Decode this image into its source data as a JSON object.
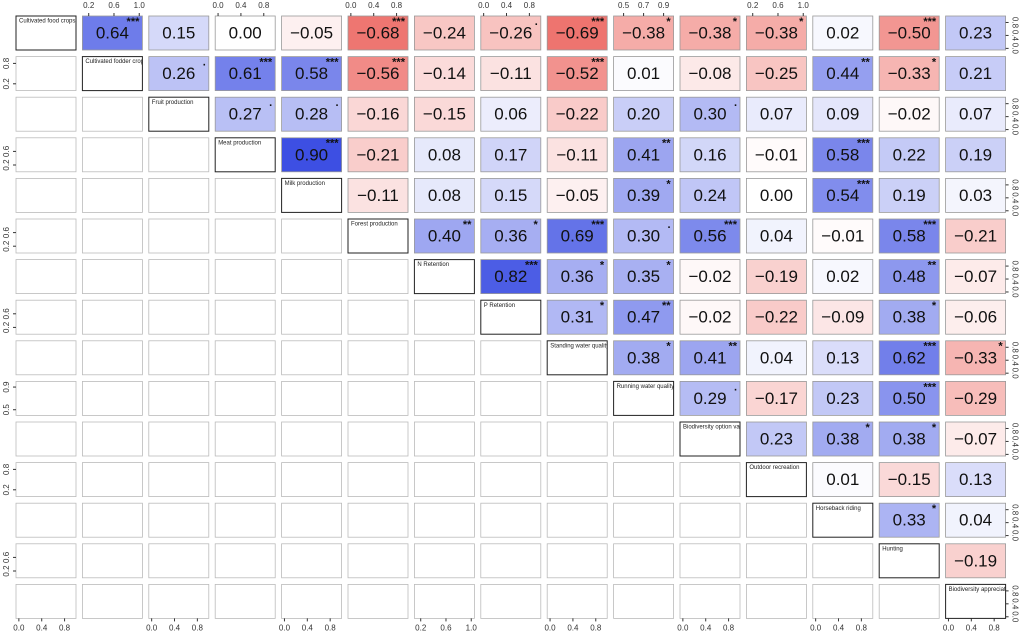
{
  "chart_data": {
    "type": "correlation-matrix",
    "variables": [
      "Cultivated food crops",
      "Cultivated fodder crops",
      "Fruit production",
      "Meat production",
      "Milk production",
      "Forest production",
      "N Retention",
      "P Retention",
      "Standing water quality",
      "Running water quality",
      "Biodiversity option value",
      "Outdoor recreation",
      "Horseback riding",
      "Hunting",
      "Biodiversity appreciation"
    ],
    "correlations": [
      [
        {
          "value": 0.64,
          "label": "0.64",
          "stars": "***"
        },
        {
          "value": 0.15,
          "label": "0.15"
        },
        {
          "value": 0,
          "label": "0.00"
        },
        {
          "value": -0.05,
          "label": "−0.05"
        },
        {
          "value": -0.68,
          "label": "−0.68",
          "stars": "***"
        },
        {
          "value": -0.24,
          "label": "−0.24"
        },
        {
          "value": -0.26,
          "label": "−0.26",
          "stars": "."
        },
        {
          "value": -0.69,
          "label": "−0.69",
          "stars": "***"
        },
        {
          "value": -0.38,
          "label": "−0.38",
          "stars": "*"
        },
        {
          "value": -0.38,
          "label": "−0.38",
          "stars": "*"
        },
        {
          "value": -0.38,
          "label": "−0.38",
          "stars": "*"
        },
        {
          "value": 0.02,
          "label": "0.02"
        },
        {
          "value": -0.5,
          "label": "−0.50",
          "stars": "***"
        },
        {
          "value": 0.23,
          "label": "0.23"
        }
      ],
      [
        {
          "value": 0.26,
          "label": "0.26",
          "stars": "."
        },
        {
          "value": 0.61,
          "label": "0.61",
          "stars": "***"
        },
        {
          "value": 0.58,
          "label": "0.58",
          "stars": "***"
        },
        {
          "value": -0.56,
          "label": "−0.56",
          "stars": "***"
        },
        {
          "value": -0.14,
          "label": "−0.14"
        },
        {
          "value": -0.11,
          "label": "−0.11"
        },
        {
          "value": -0.52,
          "label": "−0.52",
          "stars": "***"
        },
        {
          "value": 0.01,
          "label": "0.01"
        },
        {
          "value": -0.08,
          "label": "−0.08"
        },
        {
          "value": -0.25,
          "label": "−0.25"
        },
        {
          "value": 0.44,
          "label": "0.44",
          "stars": "**"
        },
        {
          "value": -0.33,
          "label": "−0.33",
          "stars": "*"
        },
        {
          "value": 0.21,
          "label": "0.21"
        }
      ],
      [
        {
          "value": 0.27,
          "label": "0.27",
          "stars": "."
        },
        {
          "value": 0.28,
          "label": "0.28",
          "stars": "."
        },
        {
          "value": -0.16,
          "label": "−0.16"
        },
        {
          "value": -0.15,
          "label": "−0.15"
        },
        {
          "value": 0.06,
          "label": "0.06"
        },
        {
          "value": -0.22,
          "label": "−0.22"
        },
        {
          "value": 0.2,
          "label": "0.20"
        },
        {
          "value": 0.3,
          "label": "0.30",
          "stars": "."
        },
        {
          "value": 0.07,
          "label": "0.07"
        },
        {
          "value": 0.09,
          "label": "0.09"
        },
        {
          "value": -0.02,
          "label": "−0.02"
        },
        {
          "value": 0.07,
          "label": "0.07"
        }
      ],
      [
        {
          "value": 0.9,
          "label": "0.90",
          "stars": "***"
        },
        {
          "value": -0.21,
          "label": "−0.21"
        },
        {
          "value": 0.08,
          "label": "0.08"
        },
        {
          "value": 0.17,
          "label": "0.17"
        },
        {
          "value": -0.11,
          "label": "−0.11"
        },
        {
          "value": 0.41,
          "label": "0.41",
          "stars": "**"
        },
        {
          "value": 0.16,
          "label": "0.16"
        },
        {
          "value": -0.01,
          "label": "−0.01"
        },
        {
          "value": 0.58,
          "label": "0.58",
          "stars": "***"
        },
        {
          "value": 0.22,
          "label": "0.22"
        },
        {
          "value": 0.19,
          "label": "0.19"
        }
      ],
      [
        {
          "value": -0.11,
          "label": "−0.11"
        },
        {
          "value": 0.08,
          "label": "0.08"
        },
        {
          "value": 0.15,
          "label": "0.15"
        },
        {
          "value": -0.05,
          "label": "−0.05"
        },
        {
          "value": 0.39,
          "label": "0.39",
          "stars": "*"
        },
        {
          "value": 0.24,
          "label": "0.24"
        },
        {
          "value": 0,
          "label": "0.00"
        },
        {
          "value": 0.54,
          "label": "0.54",
          "stars": "***"
        },
        {
          "value": 0.19,
          "label": "0.19"
        },
        {
          "value": 0.03,
          "label": "0.03"
        }
      ],
      [
        {
          "value": 0.4,
          "label": "0.40",
          "stars": "**"
        },
        {
          "value": 0.36,
          "label": "0.36",
          "stars": "*"
        },
        {
          "value": 0.69,
          "label": "0.69",
          "stars": "***"
        },
        {
          "value": 0.3,
          "label": "0.30",
          "stars": "."
        },
        {
          "value": 0.56,
          "label": "0.56",
          "stars": "***"
        },
        {
          "value": 0.04,
          "label": "0.04"
        },
        {
          "value": -0.01,
          "label": "−0.01"
        },
        {
          "value": 0.58,
          "label": "0.58",
          "stars": "***"
        },
        {
          "value": -0.21,
          "label": "−0.21"
        }
      ],
      [
        {
          "value": 0.82,
          "label": "0.82",
          "stars": "***"
        },
        {
          "value": 0.36,
          "label": "0.36",
          "stars": "*"
        },
        {
          "value": 0.35,
          "label": "0.35",
          "stars": "*"
        },
        {
          "value": -0.02,
          "label": "−0.02"
        },
        {
          "value": -0.19,
          "label": "−0.19"
        },
        {
          "value": 0.02,
          "label": "0.02"
        },
        {
          "value": 0.48,
          "label": "0.48",
          "stars": "**"
        },
        {
          "value": -0.07,
          "label": "−0.07"
        }
      ],
      [
        {
          "value": 0.31,
          "label": "0.31",
          "stars": "*"
        },
        {
          "value": 0.47,
          "label": "0.47",
          "stars": "**"
        },
        {
          "value": -0.02,
          "label": "−0.02"
        },
        {
          "value": -0.22,
          "label": "−0.22"
        },
        {
          "value": -0.09,
          "label": "−0.09"
        },
        {
          "value": 0.38,
          "label": "0.38",
          "stars": "*"
        },
        {
          "value": -0.06,
          "label": "−0.06"
        }
      ],
      [
        {
          "value": 0.38,
          "label": "0.38",
          "stars": "*"
        },
        {
          "value": 0.41,
          "label": "0.41",
          "stars": "**"
        },
        {
          "value": 0.04,
          "label": "0.04"
        },
        {
          "value": 0.13,
          "label": "0.13"
        },
        {
          "value": 0.62,
          "label": "0.62",
          "stars": "***"
        },
        {
          "value": -0.33,
          "label": "−0.33",
          "stars": "*"
        }
      ],
      [
        {
          "value": 0.29,
          "label": "0.29",
          "stars": "."
        },
        {
          "value": -0.17,
          "label": "−0.17"
        },
        {
          "value": 0.23,
          "label": "0.23"
        },
        {
          "value": 0.5,
          "label": "0.50",
          "stars": "***"
        },
        {
          "value": -0.29,
          "label": "−0.29"
        }
      ],
      [
        {
          "value": 0.23,
          "label": "0.23"
        },
        {
          "value": 0.38,
          "label": "0.38",
          "stars": "*"
        },
        {
          "value": 0.38,
          "label": "0.38",
          "stars": "*"
        },
        {
          "value": -0.07,
          "label": "−0.07"
        }
      ],
      [
        {
          "value": 0.01,
          "label": "0.01"
        },
        {
          "value": -0.15,
          "label": "−0.15"
        },
        {
          "value": 0.13,
          "label": "0.13"
        }
      ],
      [
        {
          "value": 0.33,
          "label": "0.33",
          "stars": "*"
        },
        {
          "value": 0.04,
          "label": "0.04"
        }
      ],
      [
        {
          "value": -0.19,
          "label": "−0.19"
        }
      ]
    ],
    "positive_color": "#2b3fe0",
    "negative_color": "#e8413a",
    "axes": [
      {
        "side": "top",
        "panel": 1,
        "lim": [
          0.1,
          1.05
        ],
        "ticks": [
          0.2,
          0.6,
          {
            "value": 1,
            "label": "1.0"
          }
        ]
      },
      {
        "side": "top",
        "panel": 3,
        "lim": [
          -0.05,
          1
        ],
        "ticks": [
          {
            "value": 0,
            "label": "0.0"
          },
          0.4,
          0.8
        ]
      },
      {
        "side": "top",
        "panel": 5,
        "lim": [
          -0.05,
          1
        ],
        "ticks": [
          {
            "value": 0,
            "label": "0.0"
          },
          0.4,
          0.8
        ]
      },
      {
        "side": "top",
        "panel": 7,
        "lim": [
          -0.05,
          1
        ],
        "ticks": [
          {
            "value": 0,
            "label": "0.0"
          },
          0.4,
          0.8
        ]
      },
      {
        "side": "top",
        "panel": 9,
        "lim": [
          0.4,
          1
        ],
        "ticks": [
          0.5,
          0.7,
          0.9
        ]
      },
      {
        "side": "top",
        "panel": 11,
        "lim": [
          0.1,
          1.05
        ],
        "ticks": [
          0.2,
          0.6,
          {
            "value": 1,
            "label": "1.0"
          }
        ]
      },
      {
        "side": "bottom",
        "panel": 0,
        "lim": [
          -0.05,
          1
        ],
        "ticks": [
          {
            "value": 0,
            "label": "0.0"
          },
          0.4,
          0.8
        ]
      },
      {
        "side": "bottom",
        "panel": 2,
        "lim": [
          -0.05,
          1
        ],
        "ticks": [
          {
            "value": 0,
            "label": "0.0"
          },
          0.4,
          0.8
        ]
      },
      {
        "side": "bottom",
        "panel": 4,
        "lim": [
          -0.05,
          1
        ],
        "ticks": [
          {
            "value": 0,
            "label": "0.0"
          },
          0.4,
          0.8
        ]
      },
      {
        "side": "bottom",
        "panel": 6,
        "lim": [
          0.1,
          1.05
        ],
        "ticks": [
          0.2,
          0.6,
          {
            "value": 1,
            "label": "1.0"
          }
        ]
      },
      {
        "side": "bottom",
        "panel": 8,
        "lim": [
          -0.05,
          1
        ],
        "ticks": [
          {
            "value": 0,
            "label": "0.0"
          },
          0.4,
          0.8
        ]
      },
      {
        "side": "bottom",
        "panel": 10,
        "lim": [
          -0.05,
          1
        ],
        "ticks": [
          {
            "value": 0,
            "label": "0.0"
          },
          0.4,
          0.8
        ]
      },
      {
        "side": "bottom",
        "panel": 12,
        "lim": [
          -0.05,
          1
        ],
        "ticks": [
          {
            "value": 0,
            "label": "0.0"
          },
          0.4,
          0.8
        ]
      },
      {
        "side": "bottom",
        "panel": 14,
        "lim": [
          -0.05,
          1
        ],
        "ticks": [
          {
            "value": 0,
            "label": "0.0"
          },
          0.4,
          0.8
        ]
      },
      {
        "side": "left",
        "panel": 1,
        "lim": [
          0,
          1
        ],
        "ticks": [
          0.2,
          0.8
        ]
      },
      {
        "side": "left",
        "panel": 3,
        "lim": [
          0,
          1
        ],
        "ticks": [
          0.2,
          0.6
        ]
      },
      {
        "side": "left",
        "panel": 5,
        "lim": [
          0,
          1
        ],
        "ticks": [
          0.2,
          0.6
        ]
      },
      {
        "side": "left",
        "panel": 7,
        "lim": [
          0,
          1
        ],
        "ticks": [
          0.2,
          0.6
        ]
      },
      {
        "side": "left",
        "panel": 9,
        "lim": [
          0.4,
          1
        ],
        "ticks": [
          0.5,
          0.9
        ]
      },
      {
        "side": "left",
        "panel": 11,
        "lim": [
          0,
          1
        ],
        "ticks": [
          0.2,
          0.8
        ]
      },
      {
        "side": "left",
        "panel": 13,
        "lim": [
          0,
          1
        ],
        "ticks": [
          0.2,
          0.6
        ]
      },
      {
        "side": "right",
        "panel": 0,
        "lim": [
          -0.05,
          1
        ],
        "ticks": [
          {
            "value": 0,
            "label": "0.0"
          },
          0.4,
          0.8
        ]
      },
      {
        "side": "right",
        "panel": 2,
        "lim": [
          -0.05,
          1
        ],
        "ticks": [
          {
            "value": 0,
            "label": "0.0"
          },
          0.4,
          0.8
        ]
      },
      {
        "side": "right",
        "panel": 4,
        "lim": [
          -0.05,
          1
        ],
        "ticks": [
          {
            "value": 0,
            "label": "0.0"
          },
          0.4,
          0.8
        ]
      },
      {
        "side": "right",
        "panel": 6,
        "lim": [
          -0.05,
          1
        ],
        "ticks": [
          {
            "value": 0,
            "label": "0.0"
          },
          0.4,
          0.8
        ]
      },
      {
        "side": "right",
        "panel": 8,
        "lim": [
          -0.05,
          1
        ],
        "ticks": [
          {
            "value": 0,
            "label": "0.0"
          },
          0.4,
          0.8
        ]
      },
      {
        "side": "right",
        "panel": 10,
        "lim": [
          -0.05,
          1
        ],
        "ticks": [
          {
            "value": 0,
            "label": "0.0"
          },
          0.4,
          0.8
        ]
      },
      {
        "side": "right",
        "panel": 12,
        "lim": [
          -0.05,
          1
        ],
        "ticks": [
          {
            "value": 0,
            "label": "0.0"
          },
          0.4,
          0.8
        ]
      },
      {
        "side": "right",
        "panel": 14,
        "lim": [
          -0.05,
          1
        ],
        "ticks": [
          {
            "value": 0,
            "label": "0.0"
          },
          0.4,
          0.8
        ]
      }
    ]
  }
}
